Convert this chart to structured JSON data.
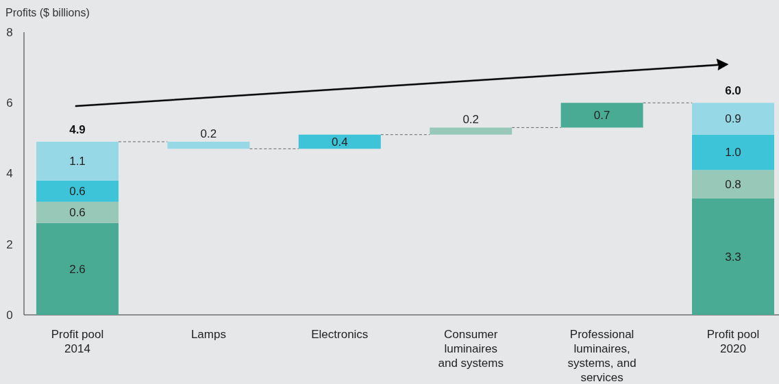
{
  "chart_data": {
    "type": "bar",
    "stacked": true,
    "ylabel": "Profits ($ billions)",
    "categories": [
      "Profit pool 2014",
      "Lamps",
      "Electronics",
      "Consumer luminaires and systems",
      "Professional luminaires, systems, and services",
      "Profit pool 2020"
    ],
    "series": [
      {
        "color": "#4aab94",
        "values": [
          2.6,
          null,
          null,
          null,
          0.7,
          3.3
        ],
        "base": [
          null,
          null,
          null,
          null,
          5.3,
          null
        ],
        "value_labels": [
          "2.6",
          null,
          null,
          null,
          "0.7",
          "3.3"
        ]
      },
      {
        "color": "#98c8b8",
        "values": [
          0.6,
          null,
          null,
          0.2,
          null,
          0.8
        ],
        "base": [
          null,
          null,
          null,
          5.1,
          null,
          null
        ],
        "value_labels": [
          "0.6",
          null,
          null,
          "0.2",
          null,
          "0.8"
        ]
      },
      {
        "color": "#3dc4d8",
        "values": [
          0.6,
          null,
          0.4,
          null,
          null,
          1.0
        ],
        "base": [
          null,
          null,
          4.7,
          null,
          null,
          null
        ],
        "value_labels": [
          "0.6",
          null,
          "0.4",
          null,
          null,
          "1.0"
        ]
      },
      {
        "color": "#96d8e6",
        "values": [
          1.1,
          0.2,
          null,
          null,
          null,
          0.9
        ],
        "base": [
          null,
          4.7,
          null,
          null,
          null,
          null
        ],
        "value_labels": [
          "1.1",
          "0.2",
          null,
          null,
          null,
          "0.9"
        ]
      }
    ],
    "totals": [
      "4.9",
      null,
      null,
      null,
      null,
      "6.0"
    ],
    "ylim": [
      0,
      8
    ],
    "yticks": [
      0,
      2,
      4,
      6,
      8
    ],
    "grid": false
  }
}
